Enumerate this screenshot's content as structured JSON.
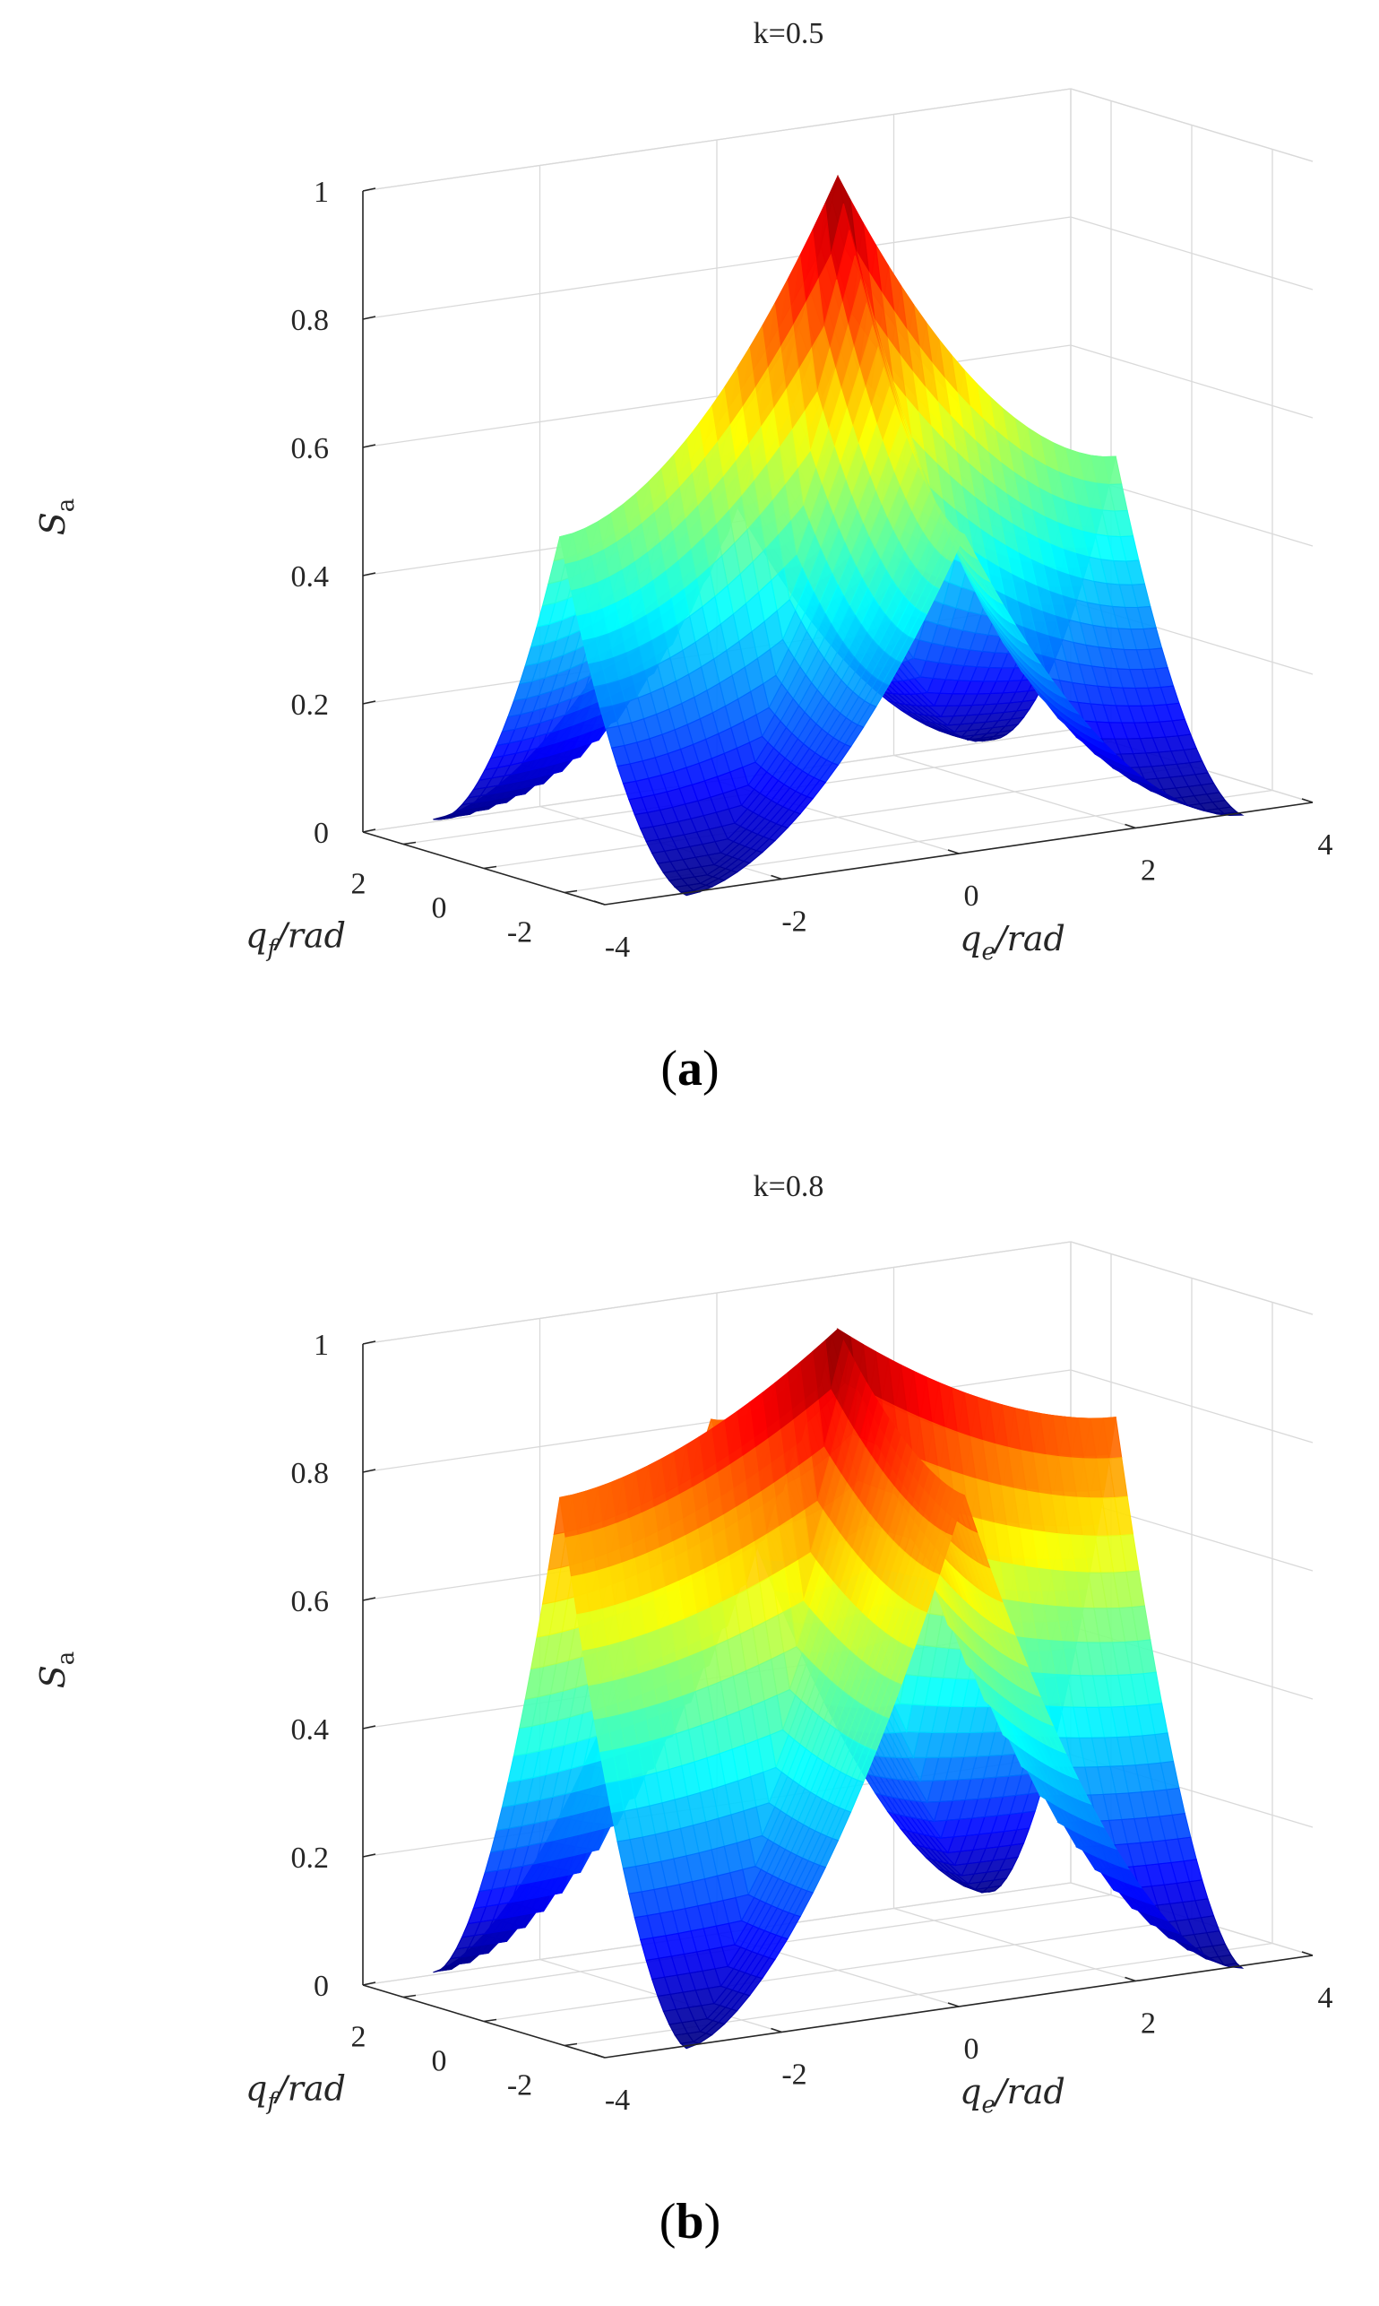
{
  "chart_data": [
    {
      "type": "surface",
      "panel_label": "a",
      "title": "k=0.5",
      "k": 0.5,
      "xlabel": "q_e/rad",
      "xlabel_main": "q",
      "xlabel_sub": "e",
      "xlabel_rest": "/rad",
      "ylabel": "q_f/rad",
      "ylabel_main": "q",
      "ylabel_sub": "f",
      "ylabel_rest": "/rad",
      "zlabel": "S_a",
      "zlabel_main": "S",
      "zlabel_sub": "a",
      "xlim": [
        -4,
        4
      ],
      "ylim": [
        -3,
        3
      ],
      "zlim": [
        0,
        1
      ],
      "xticks": [
        "-4",
        "-2",
        "0",
        "2",
        "4"
      ],
      "yticks": [
        "2",
        "0",
        "-2"
      ],
      "zticks": [
        "0",
        "0.2",
        "0.4",
        "0.6",
        "0.8",
        "1"
      ],
      "x_range": [
        -3.1416,
        3.1416
      ],
      "y_range": [
        -3.1416,
        3.1416
      ],
      "peak": {
        "x": 0,
        "y": 0,
        "z": 1.0
      },
      "corner_value": 0.0,
      "edge_mid_x_value": 0.5,
      "edge_mid_y_value": 0.5,
      "grid": true,
      "colormap": "jet"
    },
    {
      "type": "surface",
      "panel_label": "b",
      "title": "k=0.8",
      "k": 0.8,
      "xlabel": "q_e/rad",
      "xlabel_main": "q",
      "xlabel_sub": "e",
      "xlabel_rest": "/rad",
      "ylabel": "q_f/rad",
      "ylabel_main": "q",
      "ylabel_sub": "f",
      "ylabel_rest": "/rad",
      "zlabel": "S_a",
      "zlabel_main": "S",
      "zlabel_sub": "a",
      "xlim": [
        -4,
        4
      ],
      "ylim": [
        -3,
        3
      ],
      "zlim": [
        0,
        1
      ],
      "xticks": [
        "-4",
        "-2",
        "0",
        "2",
        "4"
      ],
      "yticks": [
        "2",
        "0",
        "-2"
      ],
      "zticks": [
        "0",
        "0.2",
        "0.4",
        "0.6",
        "0.8",
        "1"
      ],
      "x_range": [
        -3.1416,
        3.1416
      ],
      "y_range": [
        -3.1416,
        3.1416
      ],
      "peak": {
        "x": 0,
        "y": 0,
        "z": 1.0
      },
      "corner_value": 0.0,
      "edge_mid_x_value": 0.8,
      "edge_mid_y_value": 0.8,
      "grid": true,
      "colormap": "jet"
    }
  ]
}
